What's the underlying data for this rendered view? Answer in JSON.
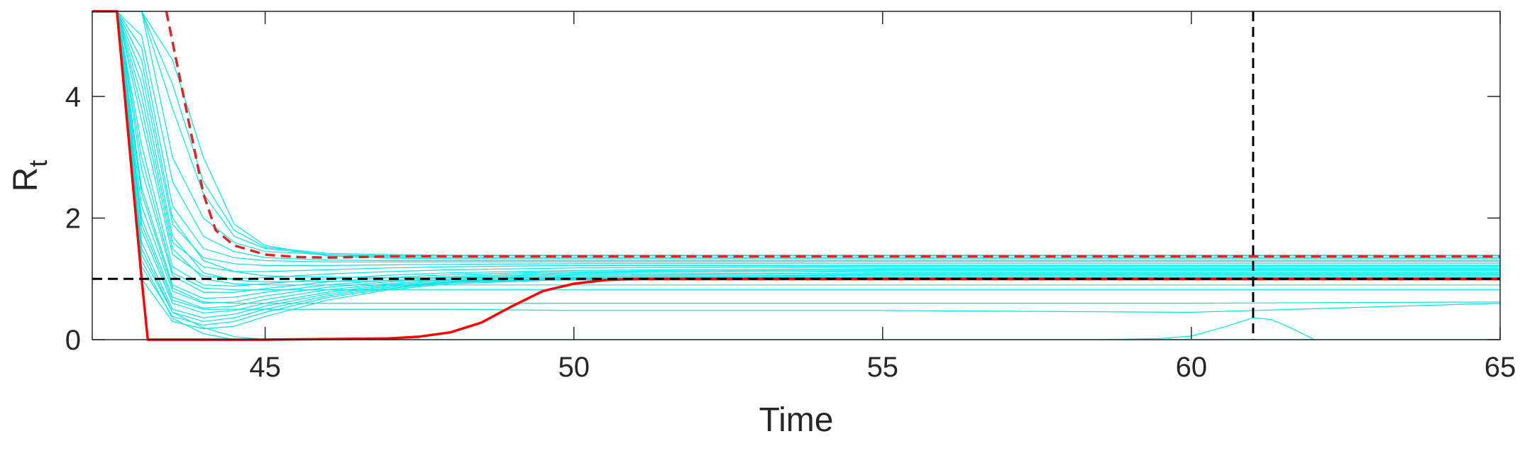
{
  "chart_data": {
    "type": "line",
    "title": "",
    "xlabel": "Time",
    "ylabel": "R",
    "ylabel_subscript": "t",
    "xlim": [
      42.2,
      65
    ],
    "ylim": [
      0,
      5.4
    ],
    "xticks": [
      45,
      50,
      55,
      60,
      65
    ],
    "yticks": [
      0,
      2,
      4
    ],
    "grid": false,
    "legend": "none",
    "reference_lines": [
      {
        "orientation": "horizontal",
        "value": 1,
        "style": "dashed",
        "color": "#000000"
      },
      {
        "orientation": "vertical",
        "value": 61,
        "style": "dashed",
        "color": "#000000"
      }
    ],
    "series": [
      {
        "style": "solid",
        "color": "#ff0000",
        "x": [
          42.2,
          42.6,
          42.8,
          43.0,
          43.1,
          45,
          47,
          47.5,
          48,
          48.5,
          49,
          49.5,
          50,
          50.5,
          51,
          53,
          55,
          60,
          65
        ],
        "y": [
          5.4,
          5.4,
          3.2,
          1.0,
          0,
          0,
          0.02,
          0.05,
          0.12,
          0.28,
          0.55,
          0.8,
          0.92,
          0.98,
          1.0,
          1.0,
          1.0,
          1.0,
          1.0
        ]
      },
      {
        "style": "dashed",
        "color": "#d62828",
        "x": [
          43.4,
          43.6,
          43.8,
          44.0,
          44.2,
          44.5,
          45,
          45.5,
          46,
          47,
          50,
          55,
          60,
          65
        ],
        "y": [
          5.4,
          4.4,
          3.4,
          2.4,
          1.8,
          1.55,
          1.4,
          1.36,
          1.35,
          1.37,
          1.37,
          1.37,
          1.37,
          1.37
        ]
      }
    ],
    "ensemble": {
      "color": "#00e5e5",
      "description_free": true,
      "x": [
        42.6,
        43.0,
        43.5,
        44.0,
        44.5,
        45,
        46,
        47,
        48,
        50,
        55,
        60,
        65
      ],
      "trajectories": [
        [
          5.4,
          5.4,
          3.0,
          2.0,
          1.6,
          1.45,
          1.4,
          1.38,
          1.38,
          1.38,
          1.38,
          1.38,
          1.38
        ],
        [
          5.4,
          5.4,
          3.8,
          2.4,
          1.7,
          1.5,
          1.4,
          1.36,
          1.35,
          1.35,
          1.35,
          1.35,
          1.35
        ],
        [
          5.4,
          5.4,
          4.6,
          3.0,
          1.9,
          1.55,
          1.38,
          1.34,
          1.33,
          1.33,
          1.33,
          1.33,
          1.33
        ],
        [
          5.4,
          5.0,
          2.6,
          1.7,
          1.45,
          1.35,
          1.31,
          1.3,
          1.3,
          1.3,
          1.3,
          1.3,
          1.3
        ],
        [
          5.4,
          4.8,
          2.2,
          1.5,
          1.35,
          1.3,
          1.28,
          1.28,
          1.28,
          1.28,
          1.28,
          1.28,
          1.28
        ],
        [
          5.4,
          4.4,
          1.9,
          1.35,
          1.25,
          1.22,
          1.22,
          1.23,
          1.24,
          1.25,
          1.25,
          1.25,
          1.25
        ],
        [
          5.4,
          4.0,
          1.6,
          1.2,
          1.12,
          1.12,
          1.15,
          1.18,
          1.2,
          1.22,
          1.22,
          1.22,
          1.22
        ],
        [
          5.4,
          3.6,
          1.4,
          1.05,
          1.0,
          1.02,
          1.08,
          1.12,
          1.15,
          1.18,
          1.2,
          1.2,
          1.2
        ],
        [
          5.4,
          3.2,
          1.2,
          0.9,
          0.88,
          0.92,
          1.0,
          1.06,
          1.1,
          1.14,
          1.17,
          1.17,
          1.17
        ],
        [
          5.4,
          2.8,
          1.05,
          0.78,
          0.78,
          0.84,
          0.95,
          1.02,
          1.07,
          1.12,
          1.15,
          1.15,
          1.15
        ],
        [
          5.4,
          2.5,
          0.9,
          0.68,
          0.7,
          0.78,
          0.9,
          0.98,
          1.04,
          1.1,
          1.13,
          1.13,
          1.13
        ],
        [
          5.4,
          2.2,
          0.8,
          0.6,
          0.62,
          0.72,
          0.86,
          0.95,
          1.02,
          1.08,
          1.1,
          1.1,
          1.1
        ],
        [
          5.4,
          2.0,
          0.7,
          0.52,
          0.55,
          0.66,
          0.82,
          0.92,
          1.0,
          1.06,
          1.08,
          1.08,
          1.08
        ],
        [
          5.4,
          1.8,
          0.6,
          0.44,
          0.48,
          0.6,
          0.78,
          0.9,
          0.98,
          1.04,
          1.06,
          1.06,
          1.06
        ],
        [
          5.4,
          1.6,
          0.5,
          0.36,
          0.42,
          0.55,
          0.75,
          0.88,
          0.96,
          1.02,
          1.04,
          1.04,
          1.04
        ],
        [
          5.4,
          1.4,
          0.45,
          0.3,
          0.36,
          0.5,
          0.72,
          0.86,
          0.95,
          1.01,
          1.02,
          1.02,
          1.02
        ],
        [
          5.4,
          1.2,
          0.38,
          0.24,
          0.3,
          0.45,
          0.69,
          0.84,
          0.94,
          1.0,
          1.01,
          1.01,
          1.01
        ],
        [
          5.4,
          1.0,
          0.3,
          0.18,
          0.22,
          0.38,
          0.65,
          0.82,
          0.92,
          0.99,
          1.0,
          1.0,
          1.0
        ],
        [
          5.4,
          5.4,
          4.2,
          2.6,
          1.8,
          1.52,
          1.42,
          1.4,
          1.39,
          1.39,
          1.39,
          1.39,
          1.39
        ],
        [
          5.4,
          4.6,
          2.0,
          1.3,
          1.12,
          1.05,
          1.03,
          1.02,
          1.02,
          1.02,
          1.02,
          1.02,
          1.02
        ],
        [
          5.4,
          4.2,
          1.7,
          1.1,
          0.98,
          0.95,
          0.96,
          0.97,
          0.98,
          0.98,
          0.98,
          0.98,
          0.98
        ],
        [
          5.4,
          3.8,
          1.5,
          1.0,
          0.92,
          0.9,
          0.9,
          0.9,
          0.9,
          0.9,
          0.9,
          0.9,
          0.9
        ],
        [
          5.4,
          3.0,
          1.1,
          0.85,
          0.82,
          0.82,
          0.82,
          0.82,
          0.82,
          0.82,
          0.82,
          0.82,
          0.82
        ],
        [
          5.4,
          2.4,
          0.85,
          0.62,
          0.6,
          0.6,
          0.6,
          0.6,
          0.6,
          0.6,
          0.6,
          0.6,
          0.62
        ],
        [
          5.4,
          1.9,
          0.65,
          0.5,
          0.5,
          0.5,
          0.5,
          0.5,
          0.5,
          0.48,
          0.48,
          0.45,
          0.6
        ],
        [
          5.4,
          1.5,
          0.45,
          0.2,
          0.05,
          0.0,
          0.0,
          0.0,
          0.0,
          0.0,
          0.0,
          0.0,
          0.0
        ],
        [
          5.4,
          1.3,
          0.35,
          0.1,
          0.0,
          0.0,
          0.0,
          0.0,
          0.0,
          0.0,
          0.0,
          0.0,
          0.0
        ]
      ],
      "late_trajectory": {
        "x": [
          58.5,
          59.5,
          60.0,
          60.5,
          61.0,
          61.3,
          61.6,
          62.0
        ],
        "y": [
          0.0,
          0.02,
          0.06,
          0.2,
          0.36,
          0.33,
          0.2,
          0.0
        ]
      }
    }
  }
}
